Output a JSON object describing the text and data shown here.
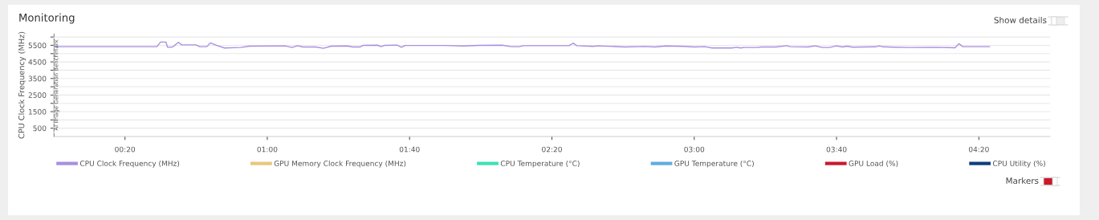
{
  "chart_data": {
    "type": "line",
    "title": "Monitoring",
    "ylabel": "CPU Clock Frequency (MHz)",
    "xlim": [
      0,
      280
    ],
    "xticks": [
      {
        "value": 20,
        "label": "00:20"
      },
      {
        "value": 60,
        "label": "01:00"
      },
      {
        "value": 100,
        "label": "01:40"
      },
      {
        "value": 140,
        "label": "02:20"
      },
      {
        "value": 180,
        "label": "03:00"
      },
      {
        "value": 220,
        "label": "03:40"
      },
      {
        "value": 260,
        "label": "04:20"
      }
    ],
    "ylim": [
      0,
      6200
    ],
    "yticks": [
      500,
      {
        "value": 1000,
        "label": null
      },
      1500,
      {
        "value": 2000,
        "label": null
      },
      2500,
      {
        "value": 3000,
        "label": null
      },
      3500,
      {
        "value": 4000,
        "label": null
      },
      4500,
      {
        "value": 5000,
        "label": null
      },
      5500,
      {
        "value": 6000,
        "label": null
      }
    ],
    "grid": "y",
    "legend": "bottom",
    "marker": "none",
    "line_style": "solid",
    "ref_lines": [
      {
        "axis": "x",
        "value": 0,
        "label": "AI Image Generation Benchmark",
        "color": "#555555",
        "line_style": "dashed"
      }
    ],
    "annotations": [
      "Show details",
      "Markers"
    ],
    "series": [
      {
        "name": "CPU Clock Frequency (MHz)",
        "color": "#a88fe0",
        "x": [
          0,
          29,
          30,
          31.5,
          32,
          33.4,
          35,
          36,
          40,
          41,
          43,
          44,
          46,
          48,
          52.5,
          55,
          65,
          67,
          68.5,
          70,
          73.5,
          75.8,
          78,
          82.5,
          84,
          86,
          87,
          91,
          92,
          93,
          96.5,
          97.7,
          98.8,
          109.7,
          115,
          119.6,
          126,
          128.6,
          130.8,
          132,
          144.8,
          146,
          147,
          151.5,
          153,
          160.5,
          166,
          169,
          172,
          177,
          180,
          183,
          185,
          190.5,
          192,
          193,
          194,
          197.5,
          199,
          203,
          206,
          207,
          212,
          214,
          216,
          218,
          220,
          221.6,
          223,
          224.5,
          230.9,
          232,
          233,
          236,
          240.5,
          248,
          253.3,
          254.4,
          255.5,
          263
        ],
        "values": [
          5420,
          5420,
          5700,
          5700,
          5380,
          5400,
          5680,
          5530,
          5530,
          5420,
          5420,
          5650,
          5480,
          5340,
          5370,
          5450,
          5470,
          5370,
          5480,
          5400,
          5400,
          5320,
          5450,
          5460,
          5400,
          5400,
          5500,
          5510,
          5420,
          5500,
          5510,
          5380,
          5490,
          5490,
          5460,
          5500,
          5510,
          5420,
          5420,
          5480,
          5480,
          5630,
          5480,
          5440,
          5470,
          5400,
          5430,
          5400,
          5460,
          5440,
          5400,
          5420,
          5340,
          5340,
          5380,
          5340,
          5370,
          5370,
          5400,
          5400,
          5480,
          5420,
          5400,
          5470,
          5370,
          5370,
          5470,
          5400,
          5450,
          5390,
          5410,
          5470,
          5410,
          5390,
          5370,
          5380,
          5350,
          5600,
          5420,
          5420
        ]
      },
      {
        "name": "GPU Memory Clock Frequency (MHz)",
        "color": "#e8c77e"
      },
      {
        "name": "CPU Temperature (°C)",
        "color": "#3ee0b8"
      },
      {
        "name": "GPU Temperature (°C)",
        "color": "#62ace0"
      },
      {
        "name": "GPU Load (%)",
        "color": "#c8192e"
      },
      {
        "name": "CPU Utility (%)",
        "color": "#0e3f7a"
      }
    ]
  }
}
